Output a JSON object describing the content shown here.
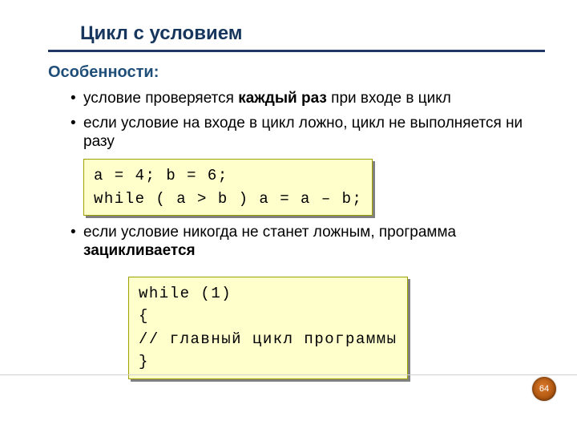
{
  "title": "Цикл с условием",
  "subhead": "Особенности:",
  "bullets": {
    "b1_pre": "условие проверяется ",
    "b1_strong": "каждый раз",
    "b1_post": " при входе в цикл",
    "b2": "если условие на входе в цикл ложно, цикл не выполняется ни разу",
    "b3_pre": "если условие никогда не станет ложным, программа ",
    "b3_strong": "зацикливается"
  },
  "code1": "a = 4; b = 6;\nwhile ( a > b ) a = a – b;",
  "code2": "while (1)\n{\n// главный цикл программы\n}",
  "pagenum": "64",
  "styles": {
    "title_color": "#17365d",
    "rule_color": "#1f3864",
    "subhead_color": "#1f4e79",
    "code_bg": "#ffffcc",
    "code_border": "#a0a000",
    "shadow": "#808080",
    "badge_gradient_inner": "#d97a2e",
    "badge_gradient_outer": "#7a3a08",
    "body_fontsize_pt": 14,
    "title_fontsize_pt": 18,
    "code_fontfamily": "Courier New"
  }
}
